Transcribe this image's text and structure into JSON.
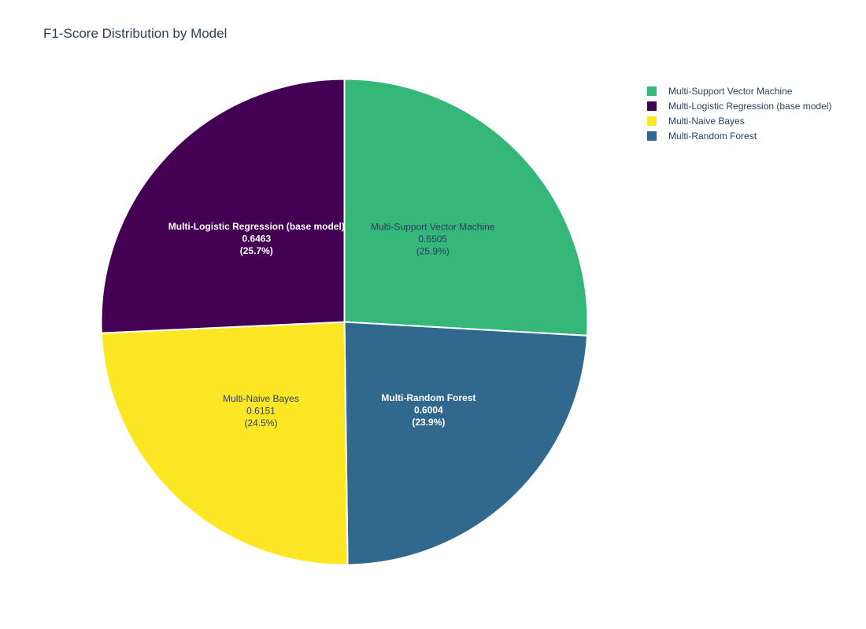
{
  "chart_data": {
    "type": "pie",
    "title": "F1-Score Distribution by Model",
    "slices": [
      {
        "label": "Multi-Support Vector Machine",
        "value": 0.6505,
        "percent": "25.9%",
        "value_text": "0.6505",
        "color": "#35b779",
        "text_color": "#2a3f5f",
        "text_bold": false
      },
      {
        "label": "Multi-Random Forest",
        "value": 0.6004,
        "percent": "23.9%",
        "value_text": "0.6004",
        "color": "#31688e",
        "text_color": "#ffffff",
        "text_bold": true
      },
      {
        "label": "Multi-Naive Bayes",
        "value": 0.6151,
        "percent": "24.5%",
        "value_text": "0.6151",
        "color": "#fde725",
        "text_color": "#2a3f5f",
        "text_bold": false
      },
      {
        "label": "Multi-Logistic Regression (base model)",
        "value": 0.6463,
        "percent": "25.7%",
        "value_text": "0.6463",
        "color": "#440154",
        "text_color": "#ffffff",
        "text_bold": true
      }
    ],
    "legend": {
      "placement": "top-right",
      "items": [
        {
          "label": "Multi-Support Vector Machine",
          "color": "#35b779"
        },
        {
          "label": "Multi-Logistic Regression (base model)",
          "color": "#440154"
        },
        {
          "label": "Multi-Naive Bayes",
          "color": "#fde725"
        },
        {
          "label": "Multi-Random Forest",
          "color": "#31688e"
        }
      ]
    }
  }
}
